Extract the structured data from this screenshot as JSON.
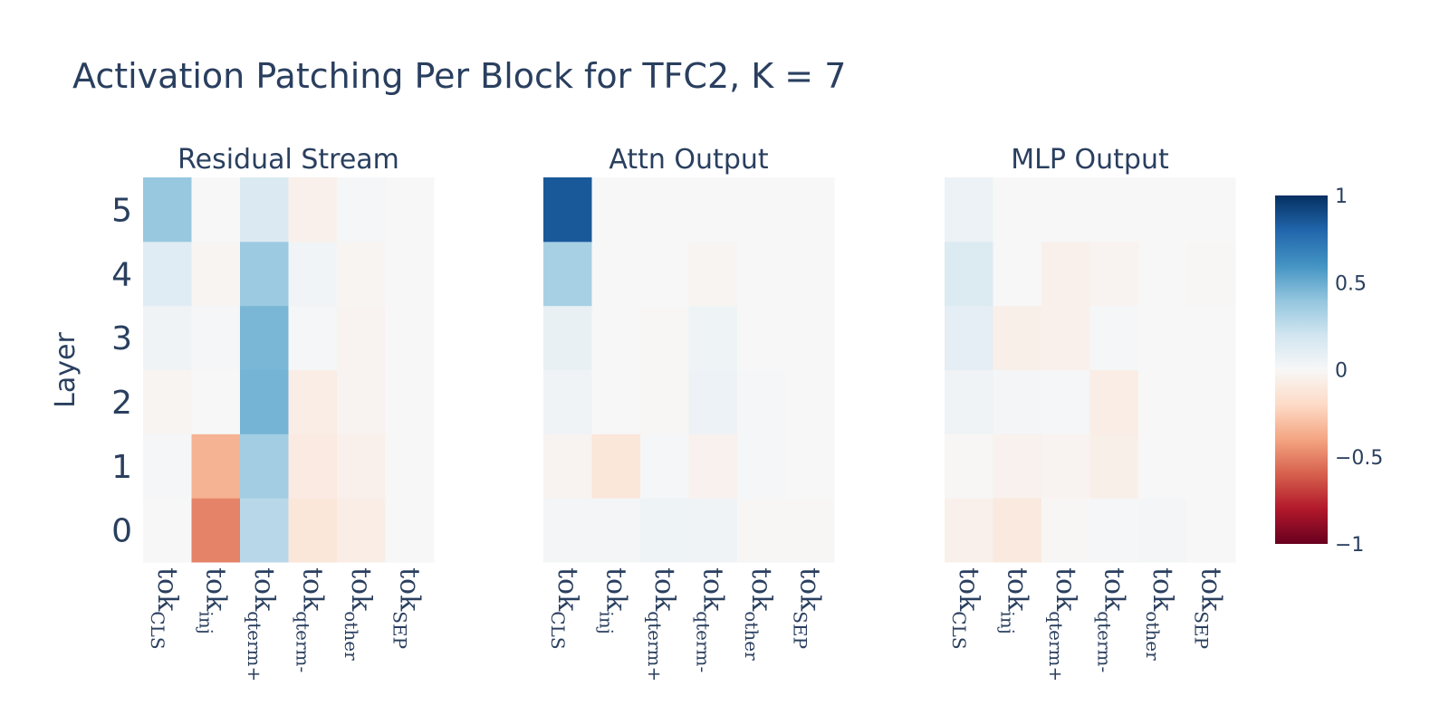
{
  "chart_data": {
    "type": "heatmap",
    "title": "Activation Patching Per Block for TFC2, K = 7",
    "ylabel": "Layer",
    "layers": [
      "0",
      "1",
      "2",
      "3",
      "4",
      "5"
    ],
    "tokens": [
      {
        "base": "tok",
        "sub": "CLS"
      },
      {
        "base": "tok",
        "sub": "inj"
      },
      {
        "base": "tok",
        "sub": "qterm+"
      },
      {
        "base": "tok",
        "sub": "qterm-"
      },
      {
        "base": "tok",
        "sub": "other"
      },
      {
        "base": "tok",
        "sub": "SEP"
      }
    ],
    "zrange": [
      -1,
      1
    ],
    "colorbar_ticks": [
      "1",
      "0.5",
      "0",
      "−0.5",
      "−1"
    ],
    "colorbar_tick_values": [
      1,
      0.5,
      0,
      -0.5,
      -1
    ],
    "colorscale": [
      "#67001f",
      "#b2182b",
      "#d6604d",
      "#f4a582",
      "#fddbc7",
      "#f7f7f7",
      "#d1e5f0",
      "#92c5de",
      "#4393c3",
      "#2166ac",
      "#053061"
    ],
    "panels": [
      {
        "title": "Residual Stream",
        "z": [
          [
            0.0,
            -0.5,
            0.28,
            -0.12,
            -0.07,
            0.0
          ],
          [
            0.01,
            -0.35,
            0.35,
            -0.09,
            -0.05,
            0.0
          ],
          [
            -0.02,
            0.0,
            0.47,
            -0.07,
            -0.03,
            0.0
          ],
          [
            0.04,
            0.01,
            0.46,
            0.01,
            -0.03,
            0.0
          ],
          [
            0.12,
            -0.02,
            0.37,
            0.03,
            -0.02,
            0.0
          ],
          [
            0.38,
            0.0,
            0.15,
            -0.05,
            0.01,
            0.0
          ]
        ]
      },
      {
        "title": "Attn Output",
        "z": [
          [
            0.02,
            0.02,
            0.05,
            0.04,
            -0.01,
            -0.01
          ],
          [
            -0.03,
            -0.12,
            0.01,
            -0.04,
            0.01,
            0.0
          ],
          [
            0.04,
            0.0,
            -0.01,
            0.06,
            0.01,
            0.0
          ],
          [
            0.08,
            0.0,
            -0.01,
            0.05,
            0.0,
            0.0
          ],
          [
            0.33,
            0.0,
            0.0,
            -0.02,
            0.0,
            0.0
          ],
          [
            0.85,
            0.0,
            0.0,
            0.0,
            0.0,
            0.0
          ]
        ]
      },
      {
        "title": "MLP Output",
        "z": [
          [
            -0.05,
            -0.1,
            -0.01,
            0.01,
            0.02,
            0.0
          ],
          [
            -0.01,
            -0.04,
            -0.03,
            -0.06,
            0.0,
            0.0
          ],
          [
            0.04,
            0.02,
            0.01,
            -0.07,
            0.0,
            0.0
          ],
          [
            0.1,
            -0.06,
            -0.05,
            0.01,
            0.0,
            0.0
          ],
          [
            0.14,
            0.0,
            -0.05,
            -0.03,
            0.0,
            -0.01
          ],
          [
            0.06,
            0.0,
            0.0,
            0.0,
            0.0,
            0.0
          ]
        ]
      }
    ]
  }
}
